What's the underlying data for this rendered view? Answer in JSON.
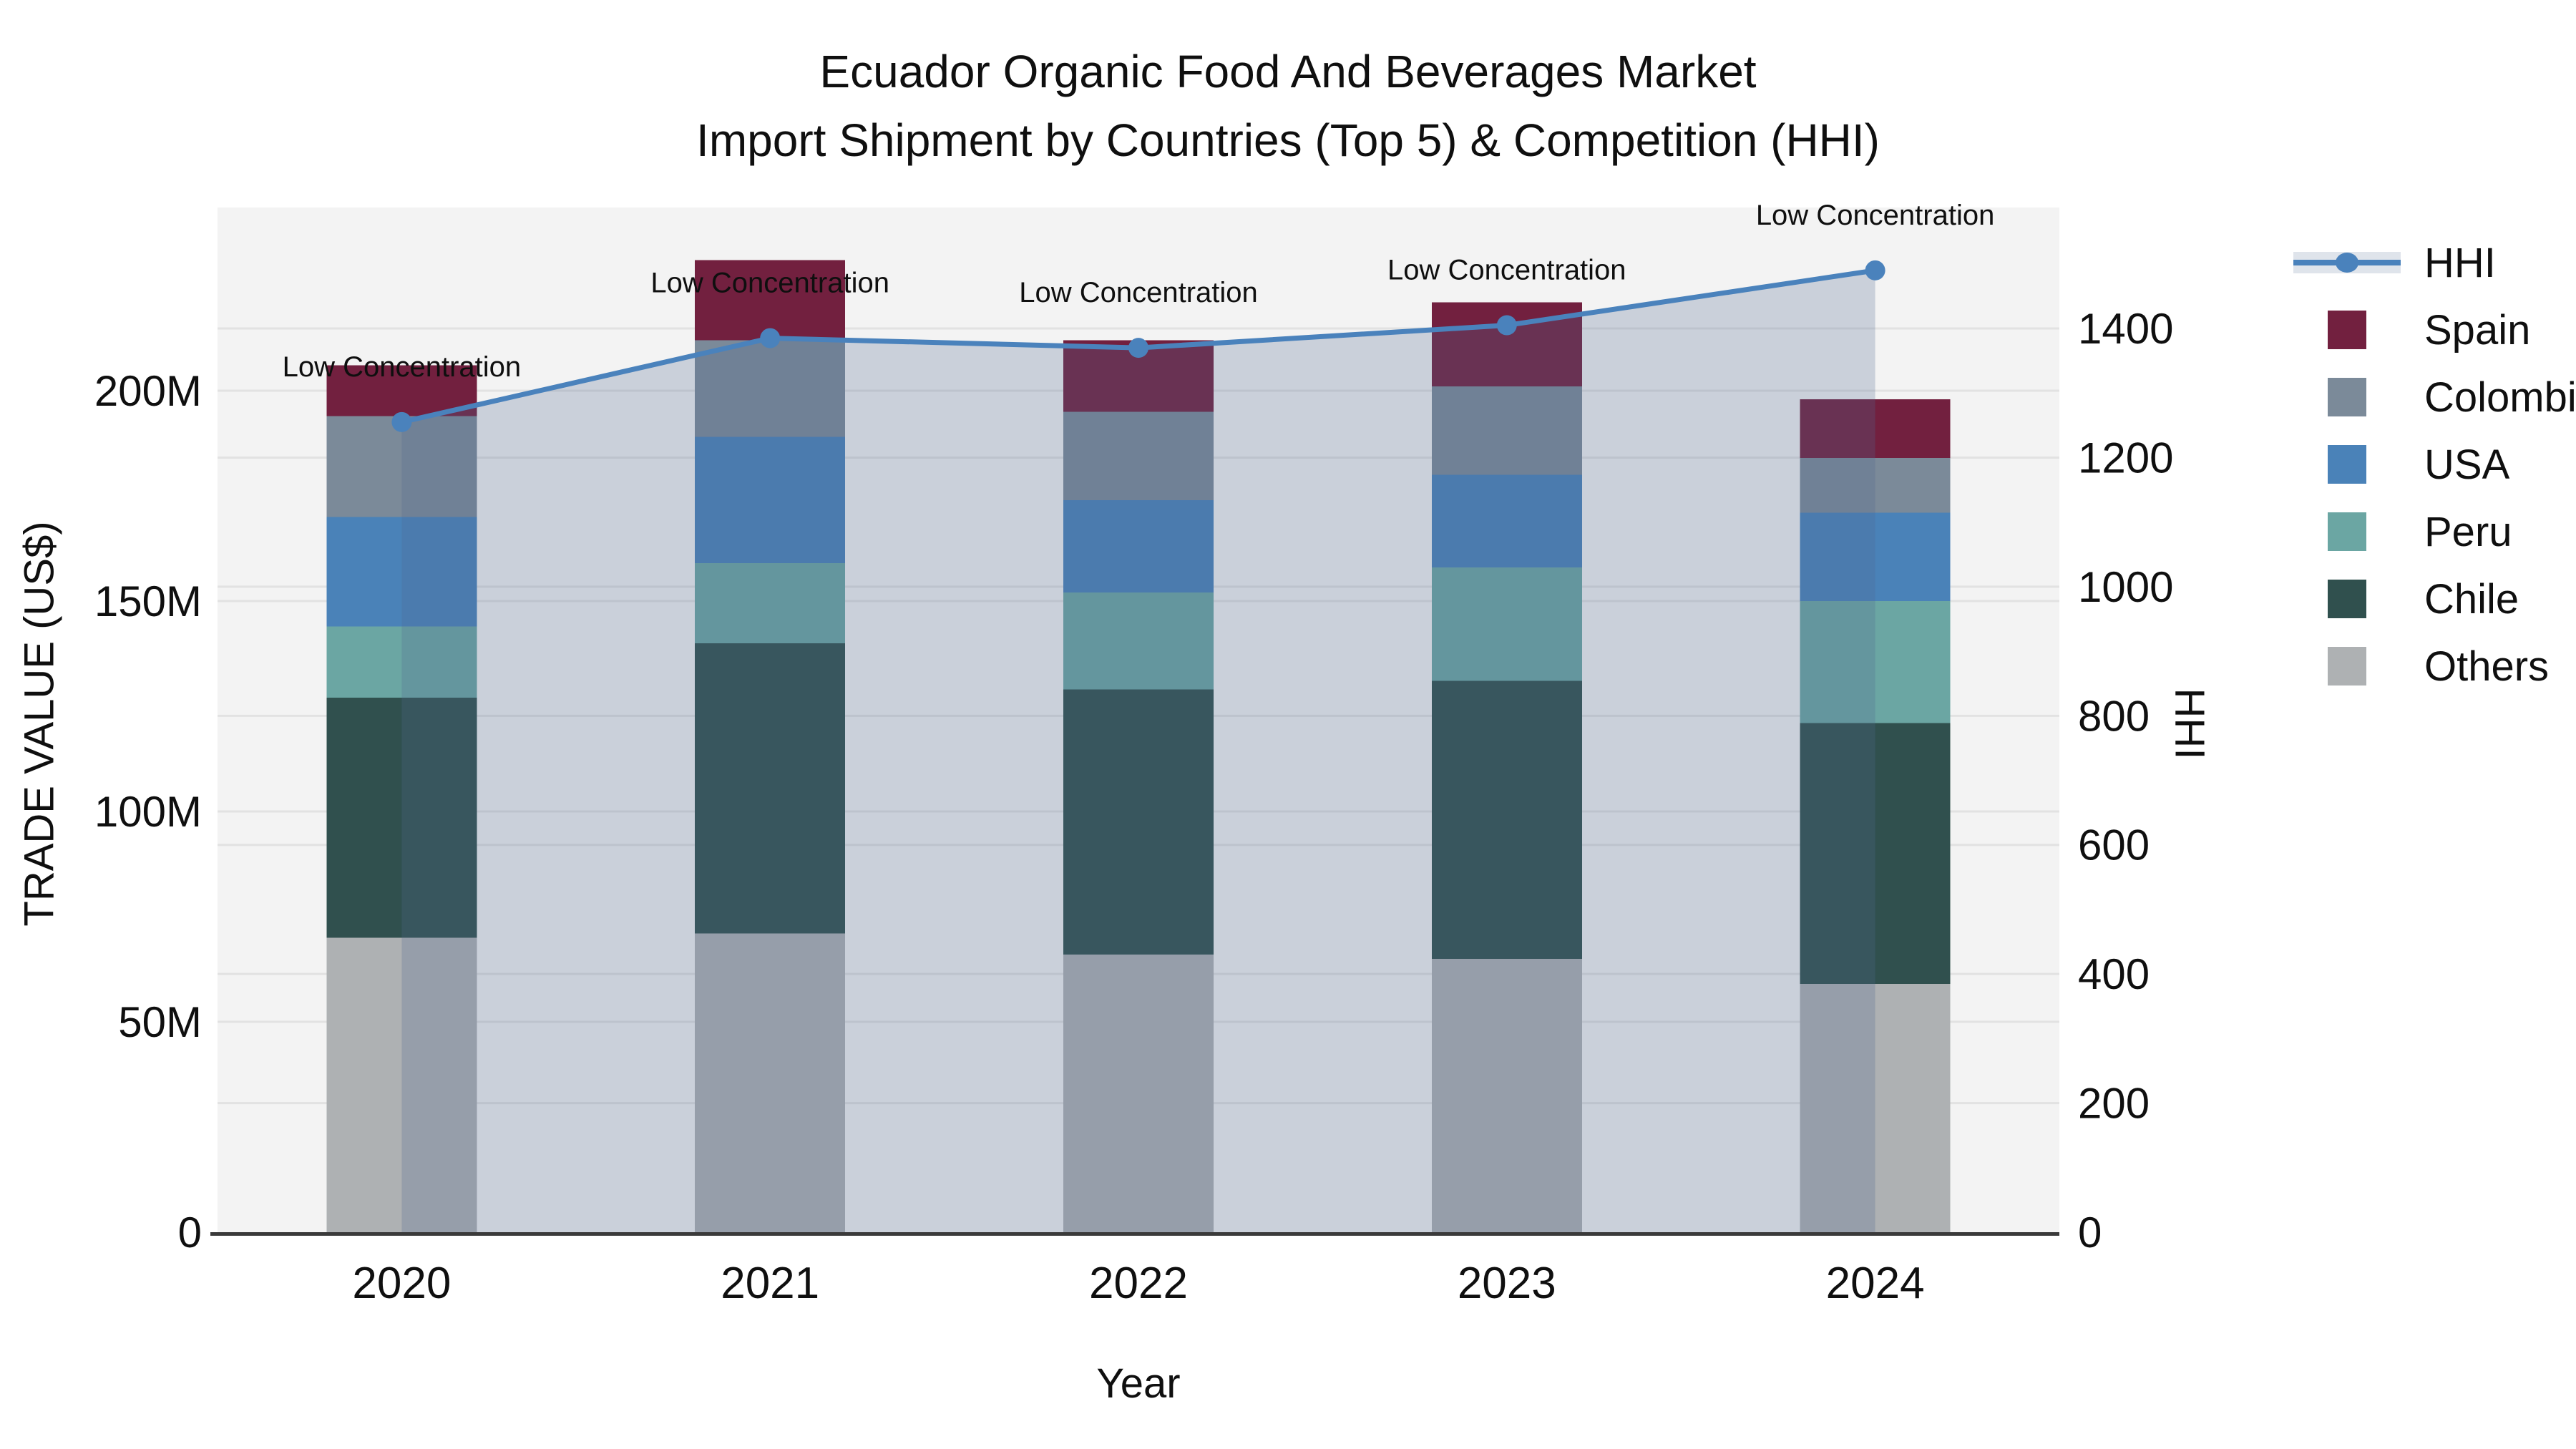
{
  "title": {
    "line1": "Ecuador Organic Food And Beverages Market",
    "line2": "Import Shipment by Countries (Top 5) & Competition (HHI)"
  },
  "legend": [
    {
      "label": "HHI",
      "type": "line",
      "color": "#4a82bc"
    },
    {
      "label": "Spain",
      "type": "swatch",
      "color": "#72203f"
    },
    {
      "label": "Colombia",
      "type": "swatch",
      "color": "#7b8a99"
    },
    {
      "label": "USA",
      "type": "swatch",
      "color": "#4a82b8"
    },
    {
      "label": "Peru",
      "type": "swatch",
      "color": "#6ba6a3"
    },
    {
      "label": "Chile",
      "type": "swatch",
      "color": "#30504e"
    },
    {
      "label": "Others",
      "type": "swatch",
      "color": "#aeb1b3"
    }
  ],
  "chart_data": {
    "type": "bar",
    "subtype": "stacked-bars-with-line-overlay",
    "categories": [
      "2020",
      "2021",
      "2022",
      "2023",
      "2024"
    ],
    "series": [
      {
        "name": "Others",
        "color": "#aeb1b3",
        "values": [
          70,
          71,
          66,
          65,
          59
        ]
      },
      {
        "name": "Chile",
        "color": "#30504e",
        "values": [
          57,
          69,
          63,
          66,
          62
        ]
      },
      {
        "name": "Peru",
        "color": "#6ba6a3",
        "values": [
          17,
          19,
          23,
          27,
          29
        ]
      },
      {
        "name": "USA",
        "color": "#4a82b8",
        "values": [
          26,
          30,
          22,
          22,
          21
        ]
      },
      {
        "name": "Colombia",
        "color": "#7b8a99",
        "values": [
          24,
          23,
          21,
          21,
          13
        ]
      },
      {
        "name": "Spain",
        "color": "#72203f",
        "values": [
          12,
          19,
          17,
          20,
          14
        ]
      }
    ],
    "line_series": {
      "name": "HHI",
      "axis": "right",
      "color": "#4a82bc",
      "fill_color": "rgba(80,103,144,0.25)",
      "values": [
        1255,
        1385,
        1370,
        1405,
        1490
      ]
    },
    "annotations": [
      {
        "category": "2020",
        "text": "Low Concentration"
      },
      {
        "category": "2021",
        "text": "Low Concentration"
      },
      {
        "category": "2022",
        "text": "Low Concentration"
      },
      {
        "category": "2023",
        "text": "Low Concentration"
      },
      {
        "category": "2024",
        "text": "Low Concentration"
      }
    ],
    "x_axis": {
      "title": "Year"
    },
    "left_axis": {
      "title": "TRADE VALUE (US$)",
      "units": "M US$",
      "range": [
        0,
        243
      ],
      "ticks": [
        {
          "label": "0",
          "value": 0
        },
        {
          "label": "50M",
          "value": 50
        },
        {
          "label": "100M",
          "value": 100
        },
        {
          "label": "150M",
          "value": 150
        },
        {
          "label": "200M",
          "value": 200
        }
      ]
    },
    "right_axis": {
      "title": "HHI",
      "range": [
        0,
        1587
      ],
      "ticks": [
        {
          "label": "0",
          "value": 0
        },
        {
          "label": "200",
          "value": 200
        },
        {
          "label": "400",
          "value": 400
        },
        {
          "label": "600",
          "value": 600
        },
        {
          "label": "800",
          "value": 800
        },
        {
          "label": "1000",
          "value": 1000
        },
        {
          "label": "1200",
          "value": 1200
        },
        {
          "label": "1400",
          "value": 1400
        }
      ]
    },
    "style": {
      "plot_bg": "#f3f3f3",
      "grid_color": "#e2e2e2",
      "axis_line_color": "#3a3a3a",
      "text_color": "#0f0f0f"
    }
  }
}
